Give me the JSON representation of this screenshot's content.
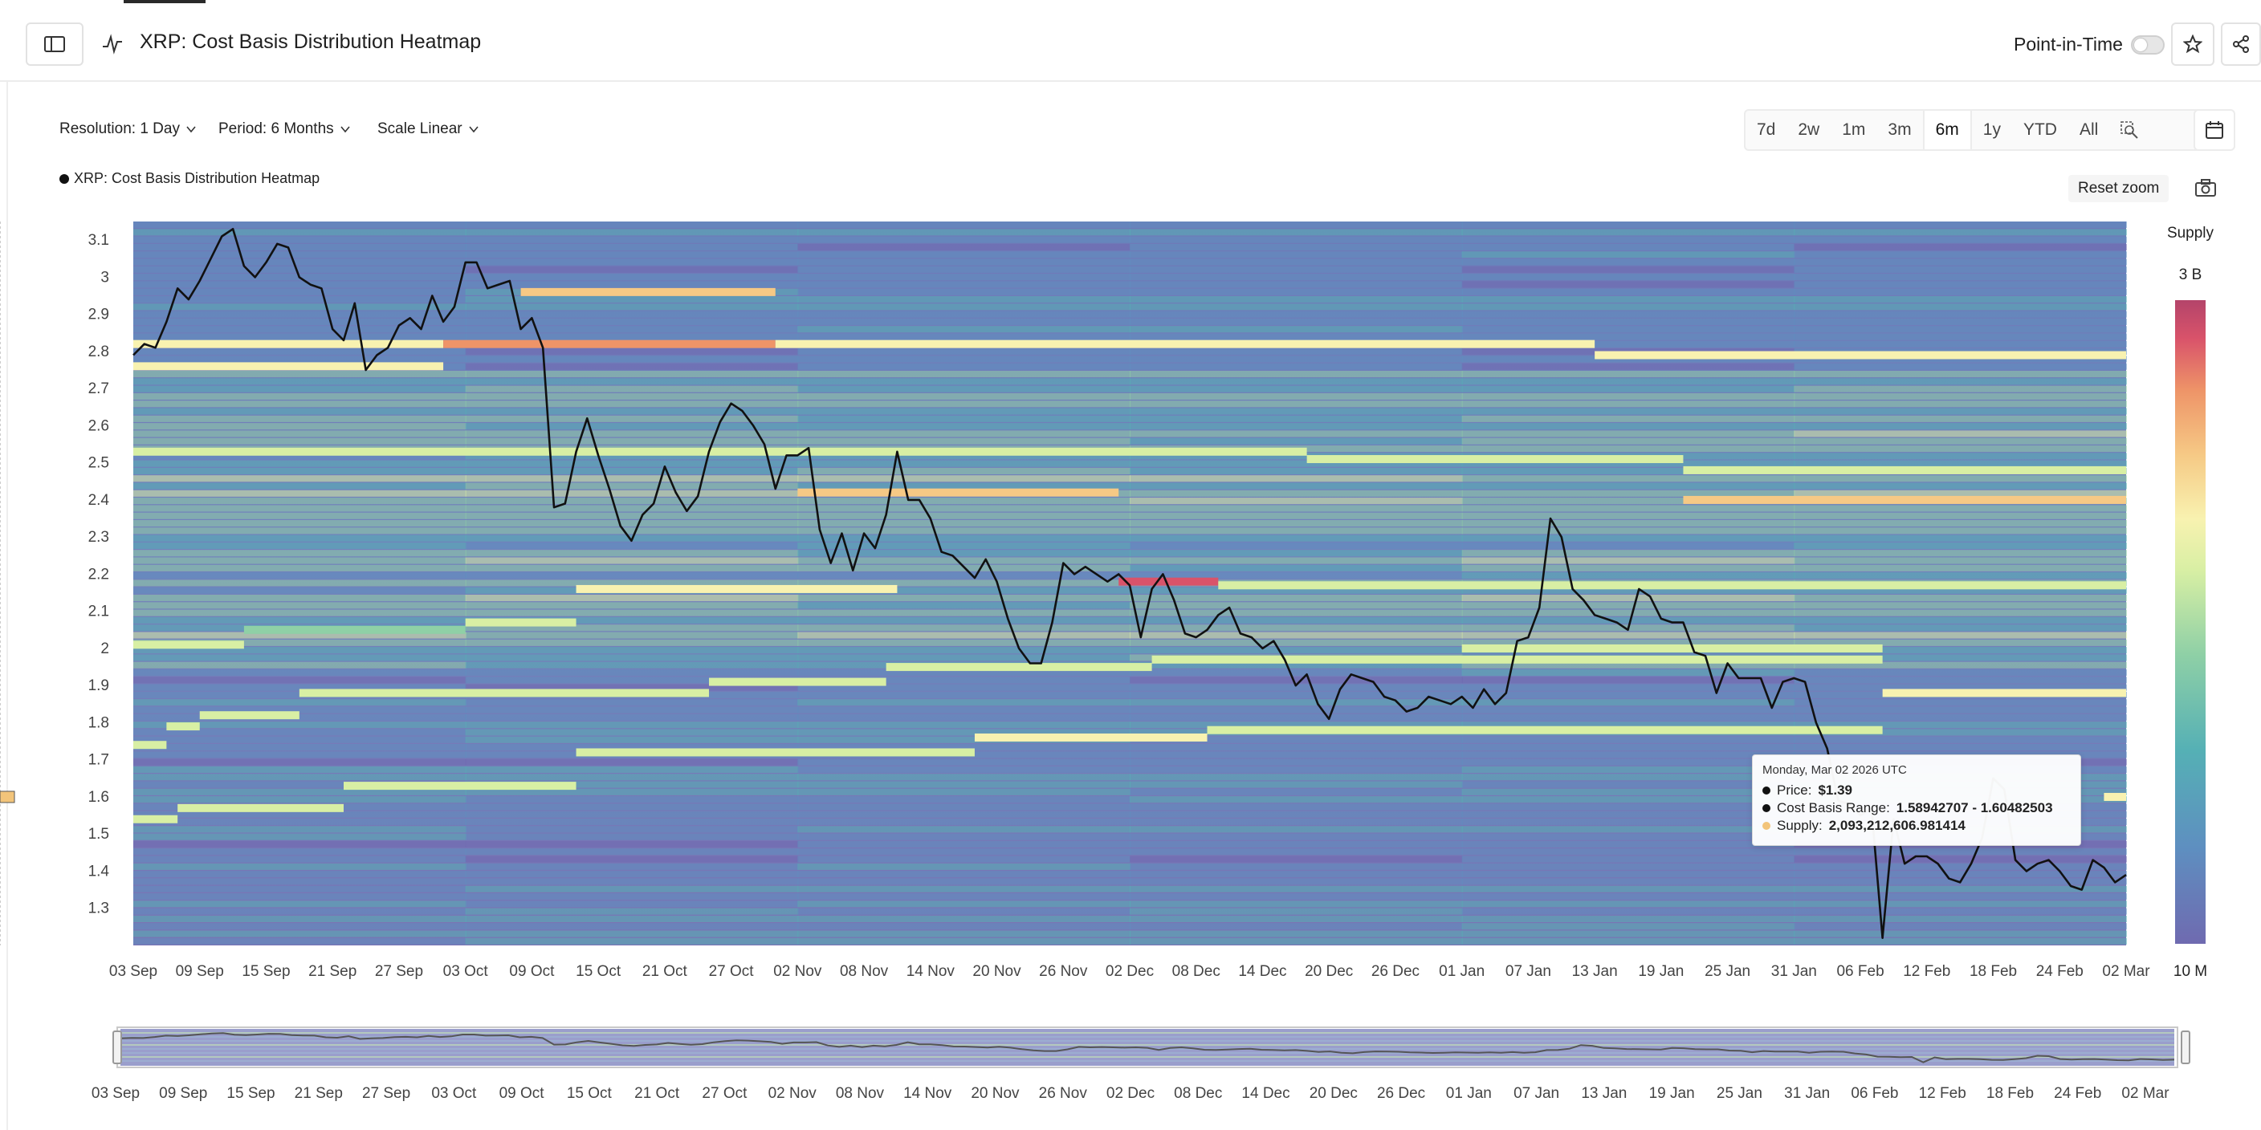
{
  "header": {
    "title": "XRP: Cost Basis Distribution Heatmap",
    "point_in_time_label": "Point-in-Time"
  },
  "controls": {
    "resolution": "Resolution: 1 Day",
    "period": "Period: 6 Months",
    "scale": "Scale Linear"
  },
  "ranges": [
    {
      "label": "7d",
      "active": false
    },
    {
      "label": "2w",
      "active": false
    },
    {
      "label": "1m",
      "active": false
    },
    {
      "label": "3m",
      "active": false
    },
    {
      "label": "6m",
      "active": true
    },
    {
      "label": "1y",
      "active": false
    },
    {
      "label": "YTD",
      "active": false
    },
    {
      "label": "All",
      "active": false
    }
  ],
  "reset_zoom_label": "Reset zoom",
  "tooltip": {
    "date": "Monday, Mar 02 2026 UTC",
    "price_label": "Price:",
    "price_value": "$1.39",
    "range_label": "Cost Basis Range:",
    "range_value": "1.58942707 - 1.60482503",
    "supply_label": "Supply:",
    "supply_value": "2,093,212,606.981414",
    "price_color": "#111111",
    "supply_color": "#f2c47a"
  },
  "chart_data": {
    "type": "heatmap",
    "title": "",
    "legend": [
      {
        "name": "XRP: Cost Basis Distribution Heatmap",
        "color": "#111111"
      }
    ],
    "xlabel": "",
    "ylabel": "",
    "x_ticks": [
      "03 Sep",
      "09 Sep",
      "15 Sep",
      "21 Sep",
      "27 Sep",
      "03 Oct",
      "09 Oct",
      "15 Oct",
      "21 Oct",
      "27 Oct",
      "02 Nov",
      "08 Nov",
      "14 Nov",
      "20 Nov",
      "26 Nov",
      "02 Dec",
      "08 Dec",
      "14 Dec",
      "20 Dec",
      "26 Dec",
      "01 Jan",
      "07 Jan",
      "13 Jan",
      "19 Jan",
      "25 Jan",
      "31 Jan",
      "06 Feb",
      "12 Feb",
      "18 Feb",
      "24 Feb",
      "02 Mar"
    ],
    "y_ticks": [
      1.3,
      1.4,
      1.5,
      1.6,
      1.7,
      1.8,
      1.9,
      2,
      2.1,
      2.2,
      2.3,
      2.4,
      2.5,
      2.6,
      2.7,
      2.8,
      2.9,
      3,
      3.1
    ],
    "ylim": [
      1.2,
      3.15
    ],
    "colorbar": {
      "label": "Supply",
      "max_label": "3 B",
      "min_label": "10 M"
    },
    "price_series": {
      "name": "Price",
      "x_day_offsets": [
        0,
        1,
        2,
        3,
        4,
        5,
        6,
        7,
        8,
        9,
        10,
        11,
        12,
        13,
        14,
        15,
        16,
        17,
        18,
        19,
        20,
        21,
        22,
        23,
        24,
        25,
        26,
        27,
        28,
        29,
        30,
        31,
        32,
        33,
        34,
        35,
        36,
        37,
        38,
        39,
        40,
        41,
        42,
        43,
        44,
        45,
        46,
        47,
        48,
        49,
        50,
        51,
        52,
        53,
        54,
        55,
        56,
        57,
        58,
        59,
        60,
        61,
        62,
        63,
        64,
        65,
        66,
        67,
        68,
        69,
        70,
        71,
        72,
        73,
        74,
        75,
        76,
        77,
        78,
        79,
        80,
        81,
        82,
        83,
        84,
        85,
        86,
        87,
        88,
        89,
        90,
        91,
        92,
        93,
        94,
        95,
        96,
        97,
        98,
        99,
        100,
        101,
        102,
        103,
        104,
        105,
        106,
        107,
        108,
        109,
        110,
        111,
        112,
        113,
        114,
        115,
        116,
        117,
        118,
        119,
        120,
        121,
        122,
        123,
        124,
        125,
        126,
        127,
        128,
        129,
        130,
        131,
        132,
        133,
        134,
        135,
        136,
        137,
        138,
        139,
        140,
        141,
        142,
        143,
        144,
        145,
        146,
        147,
        148,
        149,
        150,
        151,
        152,
        153,
        154,
        155,
        156,
        157,
        158,
        159,
        160,
        161,
        162,
        163,
        164,
        165,
        166,
        167,
        168,
        169,
        170,
        171,
        172,
        173,
        174,
        175,
        176,
        177,
        178,
        179,
        180
      ],
      "values": [
        2.79,
        2.82,
        2.81,
        2.88,
        2.97,
        2.94,
        2.99,
        3.05,
        3.11,
        3.13,
        3.03,
        3.0,
        3.04,
        3.09,
        3.08,
        3.0,
        2.98,
        2.97,
        2.86,
        2.83,
        2.93,
        2.75,
        2.79,
        2.81,
        2.87,
        2.89,
        2.86,
        2.95,
        2.88,
        2.92,
        3.04,
        3.04,
        2.97,
        2.98,
        2.99,
        2.86,
        2.89,
        2.81,
        2.38,
        2.39,
        2.53,
        2.62,
        2.52,
        2.43,
        2.33,
        2.29,
        2.36,
        2.39,
        2.49,
        2.42,
        2.37,
        2.41,
        2.53,
        2.61,
        2.66,
        2.64,
        2.6,
        2.55,
        2.43,
        2.52,
        2.52,
        2.54,
        2.32,
        2.23,
        2.31,
        2.21,
        2.31,
        2.27,
        2.36,
        2.53,
        2.4,
        2.4,
        2.35,
        2.26,
        2.25,
        2.22,
        2.19,
        2.24,
        2.18,
        2.08,
        2.0,
        1.96,
        1.96,
        2.07,
        2.23,
        2.2,
        2.22,
        2.2,
        2.18,
        2.2,
        2.17,
        2.03,
        2.16,
        2.2,
        2.13,
        2.04,
        2.03,
        2.05,
        2.09,
        2.11,
        2.04,
        2.03,
        2.0,
        2.02,
        1.97,
        1.9,
        1.93,
        1.85,
        1.81,
        1.89,
        1.93,
        1.92,
        1.91,
        1.87,
        1.86,
        1.83,
        1.84,
        1.87,
        1.86,
        1.85,
        1.87,
        1.84,
        1.89,
        1.85,
        1.88,
        2.02,
        2.03,
        2.11,
        2.35,
        2.3,
        2.16,
        2.13,
        2.09,
        2.08,
        2.07,
        2.05,
        2.16,
        2.14,
        2.08,
        2.07,
        2.07,
        1.99,
        1.98,
        1.88,
        1.96,
        1.92,
        1.92,
        1.92,
        1.84,
        1.91,
        1.92,
        1.91,
        1.8,
        1.73,
        1.59,
        1.58,
        1.55,
        1.57,
        1.22,
        1.54,
        1.42,
        1.44,
        1.44,
        1.42,
        1.38,
        1.37,
        1.42,
        1.49,
        1.65,
        1.62,
        1.43,
        1.4,
        1.42,
        1.43,
        1.4,
        1.36,
        1.35,
        1.43,
        1.41,
        1.37,
        1.39,
        1.36,
        1.39
      ]
    },
    "heat_bands": [
      {
        "y": 2.96,
        "x_start": 35,
        "x_end": 58,
        "level": 0.62
      },
      {
        "y": 2.82,
        "x_start": 0,
        "x_end": 28,
        "level": 0.55
      },
      {
        "y": 2.82,
        "x_start": 28,
        "x_end": 58,
        "level": 0.78
      },
      {
        "y": 2.82,
        "x_start": 58,
        "x_end": 132,
        "level": 0.52
      },
      {
        "y": 2.79,
        "x_start": 132,
        "x_end": 180,
        "level": 0.5
      },
      {
        "y": 2.76,
        "x_start": 0,
        "x_end": 28,
        "level": 0.5
      },
      {
        "y": 2.53,
        "x_start": 0,
        "x_end": 106,
        "level": 0.48
      },
      {
        "y": 2.51,
        "x_start": 106,
        "x_end": 140,
        "level": 0.45
      },
      {
        "y": 2.48,
        "x_start": 140,
        "x_end": 180,
        "level": 0.42
      },
      {
        "y": 2.42,
        "x_start": 60,
        "x_end": 89,
        "level": 0.72
      },
      {
        "y": 2.4,
        "x_start": 140,
        "x_end": 180,
        "level": 0.62
      },
      {
        "y": 2.18,
        "x_start": 89,
        "x_end": 98,
        "level": 0.9
      },
      {
        "y": 2.16,
        "x_start": 40,
        "x_end": 69,
        "level": 0.5
      },
      {
        "y": 2.17,
        "x_start": 98,
        "x_end": 180,
        "level": 0.45
      },
      {
        "y": 2.07,
        "x_start": 30,
        "x_end": 40,
        "level": 0.42
      },
      {
        "y": 2.05,
        "x_start": 10,
        "x_end": 30,
        "level": 0.38
      },
      {
        "y": 2.01,
        "x_start": 0,
        "x_end": 10,
        "level": 0.4
      },
      {
        "y": 2.0,
        "x_start": 120,
        "x_end": 158,
        "level": 0.44
      },
      {
        "y": 1.97,
        "x_start": 92,
        "x_end": 158,
        "level": 0.42
      },
      {
        "y": 1.95,
        "x_start": 68,
        "x_end": 92,
        "level": 0.48
      },
      {
        "y": 1.91,
        "x_start": 52,
        "x_end": 68,
        "level": 0.46
      },
      {
        "y": 1.88,
        "x_start": 15,
        "x_end": 52,
        "level": 0.42
      },
      {
        "y": 1.88,
        "x_start": 158,
        "x_end": 180,
        "level": 0.56
      },
      {
        "y": 1.82,
        "x_start": 6,
        "x_end": 15,
        "level": 0.48
      },
      {
        "y": 1.79,
        "x_start": 3,
        "x_end": 6,
        "level": 0.4
      },
      {
        "y": 1.78,
        "x_start": 97,
        "x_end": 158,
        "level": 0.46
      },
      {
        "y": 1.76,
        "x_start": 76,
        "x_end": 97,
        "level": 0.5
      },
      {
        "y": 1.72,
        "x_start": 40,
        "x_end": 76,
        "level": 0.46
      },
      {
        "y": 1.74,
        "x_start": 0,
        "x_end": 3,
        "level": 0.44
      },
      {
        "y": 1.63,
        "x_start": 19,
        "x_end": 40,
        "level": 0.44
      },
      {
        "y": 1.57,
        "x_start": 4,
        "x_end": 19,
        "level": 0.42
      },
      {
        "y": 1.54,
        "x_start": 0,
        "x_end": 4,
        "level": 0.46
      },
      {
        "y": 1.6,
        "x_start": 178,
        "x_end": 180,
        "level": 0.58
      }
    ]
  },
  "navigator": {
    "x_ticks": [
      "03 Sep",
      "09 Sep",
      "15 Sep",
      "21 Sep",
      "27 Sep",
      "03 Oct",
      "09 Oct",
      "15 Oct",
      "21 Oct",
      "27 Oct",
      "02 Nov",
      "08 Nov",
      "14 Nov",
      "20 Nov",
      "26 Nov",
      "02 Dec",
      "08 Dec",
      "14 Dec",
      "20 Dec",
      "26 Dec",
      "01 Jan",
      "07 Jan",
      "13 Jan",
      "19 Jan",
      "25 Jan",
      "31 Jan",
      "06 Feb",
      "12 Feb",
      "18 Feb",
      "24 Feb",
      "02 Mar"
    ]
  },
  "colors": {
    "bg_low": "#7a73b4",
    "heat_scale": [
      "#6f6ab0",
      "#5e8fc0",
      "#55b0b5",
      "#8fd0a6",
      "#d8efa4",
      "#f8f2b0",
      "#f6c985",
      "#ee9468",
      "#d9536a",
      "#b4446a"
    ],
    "price_line": "#111111"
  }
}
